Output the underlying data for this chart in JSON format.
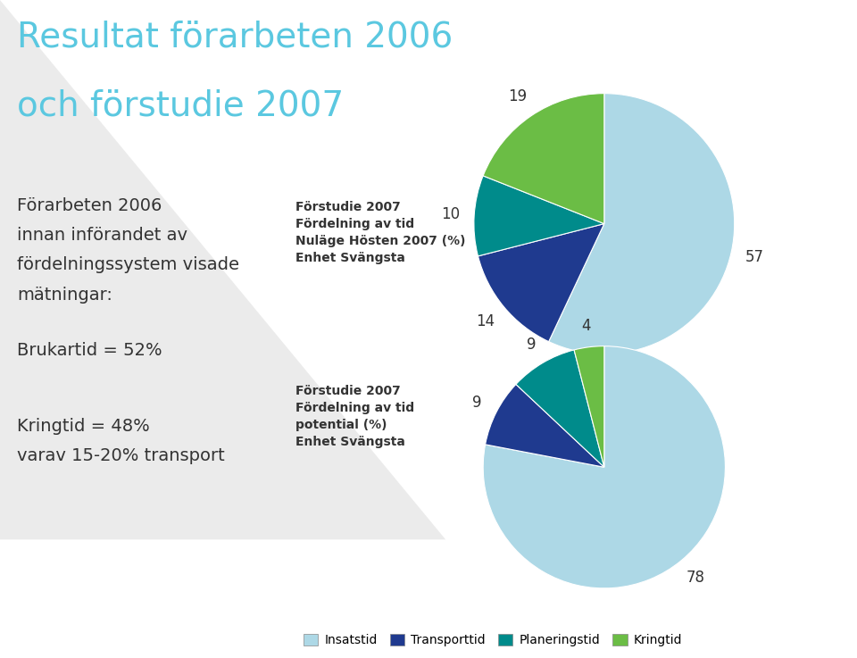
{
  "title_line1": "Resultat förarbeten 2006",
  "title_line2": "och förstudie 2007",
  "title_color": "#5BC8E0",
  "left_text_line1": "Förarbeten 2006",
  "left_text_line2": "innan införandet av",
  "left_text_line3": "fördelningssystem visade",
  "left_text_line4": "mätningar:",
  "left_text_line5": "Brukartid = 52%",
  "left_text_line6": "Kringtid = 48%",
  "left_text_line7": "varav 15-20% transport",
  "bg_color": "#FFFFFF",
  "pie1_label_lines": [
    "Förstudie 2007",
    "Fördelning av tid",
    "Nuläge Hösten 2007 (%)",
    "Enhet Svängsta"
  ],
  "pie1_values": [
    57,
    14,
    10,
    19
  ],
  "pie1_labels": [
    "57",
    "14",
    "10",
    "19"
  ],
  "pie2_label_lines": [
    "Förstudie 2007",
    "Fördelning av tid",
    "potential (%)",
    "Enhet Svängsta"
  ],
  "pie2_values": [
    78,
    9,
    9,
    4
  ],
  "pie2_labels": [
    "78",
    "9",
    "9",
    "4"
  ],
  "colors": [
    "#ADD8E6",
    "#1F3A8F",
    "#008B8B",
    "#6BBD45"
  ],
  "legend_labels": [
    "Insatstid",
    "Transporttid",
    "Planeringstid",
    "Kringtid"
  ],
  "triangle_color": "#DCDCDC",
  "text_color": "#333333",
  "body_fontsize": 14,
  "label_fontsize": 10,
  "pie_label_fontsize": 12
}
